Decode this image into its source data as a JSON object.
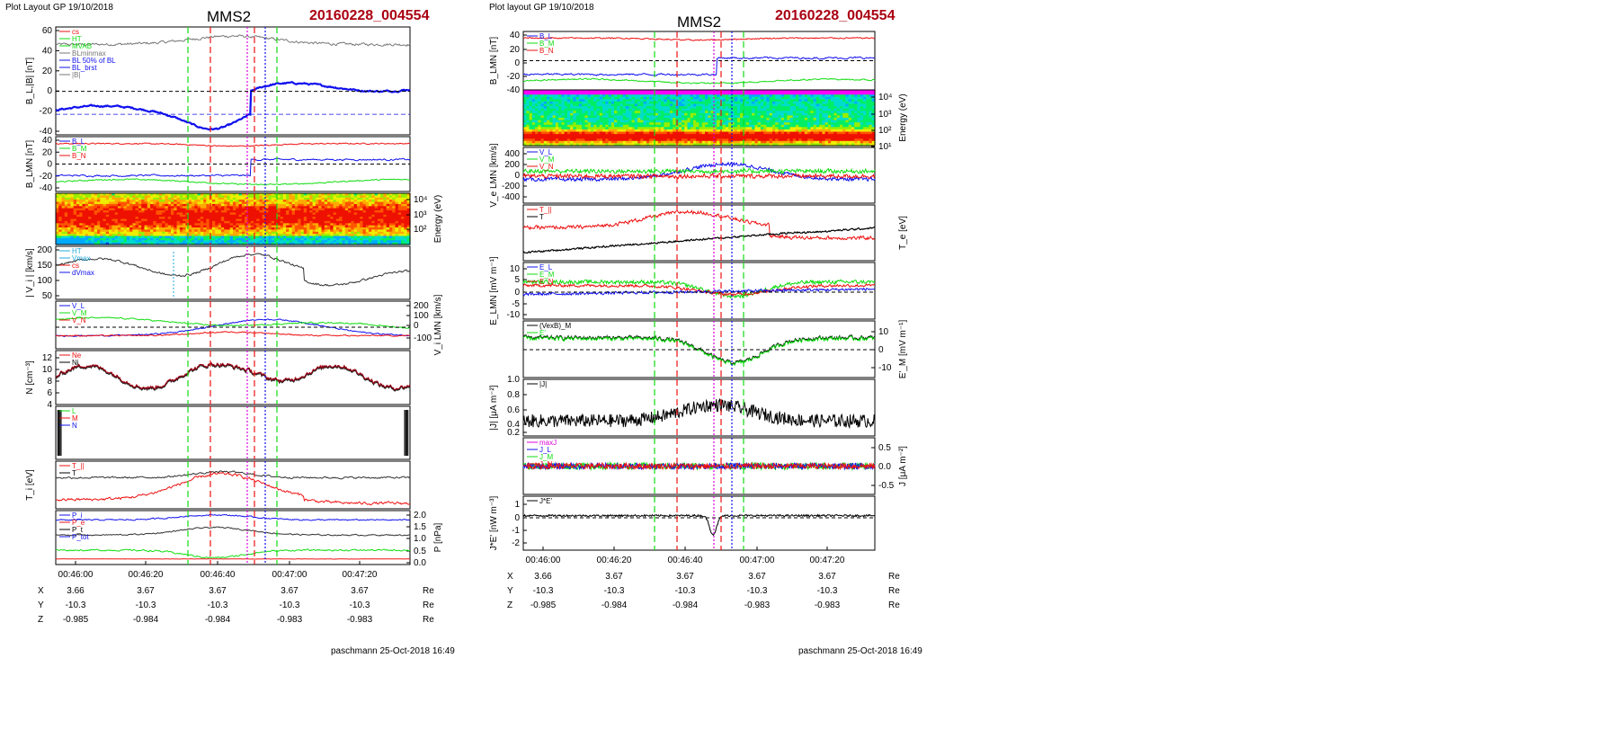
{
  "colors": {
    "blue": "#1010ee",
    "green": "#11dd11",
    "red": "#ee1111",
    "black": "#000000",
    "gray": "#777777",
    "magenta": "#dd00dd",
    "cyan": "#22aadd",
    "darkred": "#990011",
    "title_red": "#aa0011"
  },
  "header": {
    "left_layout": "Plot Layout GP 19/10/2018",
    "right_layout": "Plot layout GP 19/10/2018",
    "left_title": "MMS2",
    "right_title": "MMS2",
    "left_event": "20160228_004554",
    "right_event": "20160228_004554"
  },
  "footer": {
    "left": "paschmann 25-Oct-2018 16:49",
    "right": "paschmann 25-Oct-2018 16:49"
  },
  "time_axis": {
    "labels": [
      "00:46:00",
      "00:46:20",
      "00:46:40",
      "00:47:00",
      "00:47:20"
    ]
  },
  "ephemeris": {
    "rows": [
      {
        "label": "X",
        "values": [
          "3.66",
          "3.67",
          "3.67",
          "3.67",
          "3.67"
        ],
        "unit": "Re"
      },
      {
        "label": "Y",
        "values": [
          "-10.3",
          "-10.3",
          "-10.3",
          "-10.3",
          "-10.3"
        ],
        "unit": "Re"
      },
      {
        "label": "Z",
        "values": [
          "-0.985",
          "-0.984",
          "-0.984",
          "-0.983",
          "-0.983"
        ],
        "unit": "Re"
      }
    ]
  },
  "chart_data": [
    {
      "type": "line",
      "column": "left",
      "panels": [
        {
          "ylabel": "B_L,|B| [nT]",
          "ylim": [
            -40,
            60
          ],
          "yticks": [
            "60",
            "40",
            "20",
            "0",
            "-20",
            "-40"
          ],
          "legend": [
            {
              "text": "cs",
              "color": "red"
            },
            {
              "text": "HT",
              "color": "green"
            },
            {
              "text": "MVAB",
              "color": "green"
            },
            {
              "text": "BLminmax",
              "color": "gray"
            },
            {
              "text": "BL 50% of BL",
              "color": "blue"
            },
            {
              "text": "BL_brst",
              "color": "blue"
            },
            {
              "text": "|B|",
              "color": "gray"
            }
          ]
        },
        {
          "ylabel": "B_LMN [nT]",
          "ylim": [
            -40,
            40
          ],
          "yticks": [
            "40",
            "20",
            "0",
            "-20",
            "-40"
          ],
          "legend": [
            {
              "text": "B_L",
              "color": "blue"
            },
            {
              "text": "B_M",
              "color": "green"
            },
            {
              "text": "B_N",
              "color": "red"
            }
          ]
        },
        {
          "ylabel": "Energy (eV)",
          "type": "heatmap",
          "yticks": [
            "10⁴",
            "10³",
            "10²"
          ]
        },
        {
          "ylabel": "| V_i | [km/s]",
          "ylim": [
            50,
            220
          ],
          "yticks": [
            "200",
            "150",
            "100",
            "50"
          ],
          "legend": [
            {
              "text": "HT",
              "color": "cyan"
            },
            {
              "text": "Vmax",
              "color": "cyan"
            },
            {
              "text": "cs",
              "color": "red"
            },
            {
              "text": "dVmax",
              "color": "blue"
            }
          ]
        },
        {
          "ylabel": "V_i LMN [km/s]",
          "ylim": [
            -150,
            200
          ],
          "yticks": [
            "200",
            "100",
            "0",
            "-100"
          ],
          "legend": [
            {
              "text": "V_L",
              "color": "blue"
            },
            {
              "text": "V_M",
              "color": "green"
            },
            {
              "text": "V_N",
              "color": "red"
            }
          ]
        },
        {
          "ylabel": "N [cm⁻³]",
          "ylim": [
            4,
            13
          ],
          "yticks": [
            "12",
            "10",
            "8",
            "6",
            "4"
          ],
          "legend": [
            {
              "text": "Ne",
              "color": "red"
            },
            {
              "text": "Ni",
              "color": "black"
            }
          ]
        },
        {
          "ylabel": "",
          "legend": [
            {
              "text": "L",
              "color": "green"
            },
            {
              "text": "M",
              "color": "red"
            },
            {
              "text": "N",
              "color": "blue"
            }
          ]
        },
        {
          "ylabel": "T_i [eV]",
          "legend": [
            {
              "text": "T_||",
              "color": "red"
            },
            {
              "text": "T",
              "color": "black"
            }
          ]
        },
        {
          "ylabel": "P [nPa]",
          "ylim": [
            0,
            2
          ],
          "yticks": [
            "2.0",
            "1.5",
            "1.0",
            "0.5",
            "0.0"
          ],
          "legend": [
            {
              "text": "P_i",
              "color": "blue"
            },
            {
              "text": "P_e",
              "color": "red"
            },
            {
              "text": "P_t",
              "color": "black"
            },
            {
              "text": "P_tot",
              "color": "blue"
            }
          ]
        }
      ]
    },
    {
      "type": "line",
      "column": "right",
      "panels": [
        {
          "ylabel": "B_LMN [nT]",
          "ylim": [
            -40,
            40
          ],
          "yticks": [
            "40",
            "20",
            "0",
            "-20",
            "-40"
          ],
          "legend": [
            {
              "text": "B_L",
              "color": "blue"
            },
            {
              "text": "B_M",
              "color": "green"
            },
            {
              "text": "B_N",
              "color": "red"
            }
          ]
        },
        {
          "ylabel": "Energy (eV)",
          "type": "heatmap",
          "yticks": [
            "10⁴",
            "10³",
            "10²",
            "10¹"
          ]
        },
        {
          "ylabel": "V_e LMN [km/s]",
          "ylim": [
            -500,
            450
          ],
          "yticks": [
            "400",
            "200",
            "0",
            "-200",
            "-400"
          ],
          "legend": [
            {
              "text": "V_L",
              "color": "blue"
            },
            {
              "text": "V_M",
              "color": "green"
            },
            {
              "text": "V_N",
              "color": "red"
            }
          ]
        },
        {
          "ylabel": "T_e [eV]",
          "legend": [
            {
              "text": "T_||",
              "color": "red"
            },
            {
              "text": "T",
              "color": "black"
            }
          ]
        },
        {
          "ylabel": "E_LMN [mV m⁻¹]",
          "ylim": [
            -15,
            15
          ],
          "yticks": [
            "10",
            "5",
            "0",
            "-5",
            "-10"
          ],
          "legend": [
            {
              "text": "E_L",
              "color": "blue"
            },
            {
              "text": "E_M",
              "color": "green"
            },
            {
              "text": "E_N",
              "color": "red"
            }
          ]
        },
        {
          "ylabel": "E'_M [mV m⁻¹]",
          "ylim": [
            -15,
            15
          ],
          "yticks": [
            "10",
            "0",
            "-10"
          ],
          "legend": [
            {
              "text": "(VexB)_M",
              "color": "black"
            },
            {
              "text": "E'",
              "color": "green"
            }
          ]
        },
        {
          "ylabel": "|J| [μA m⁻²]",
          "ylim": [
            0,
            1
          ],
          "yticks": [
            "1.0",
            "0.8",
            "0.6",
            "0.4",
            "0.2"
          ],
          "legend": [
            {
              "text": "|J|",
              "color": "black"
            }
          ]
        },
        {
          "ylabel": "J [μA m⁻²]",
          "ylim": [
            -0.7,
            0.7
          ],
          "yticks": [
            "0.5",
            "0.0",
            "-0.5"
          ],
          "legend": [
            {
              "text": "maxJ",
              "color": "magenta"
            },
            {
              "text": "J_L",
              "color": "blue"
            },
            {
              "text": "J_M",
              "color": "green"
            },
            {
              "text": "J_N",
              "color": "red"
            }
          ]
        },
        {
          "ylabel": "J*E' [nW m⁻³]",
          "ylim": [
            -2.5,
            1.5
          ],
          "yticks": [
            "1",
            "0",
            "-1",
            "-2"
          ],
          "legend": [
            {
              "text": "J*E'",
              "color": "black"
            }
          ]
        }
      ]
    }
  ]
}
